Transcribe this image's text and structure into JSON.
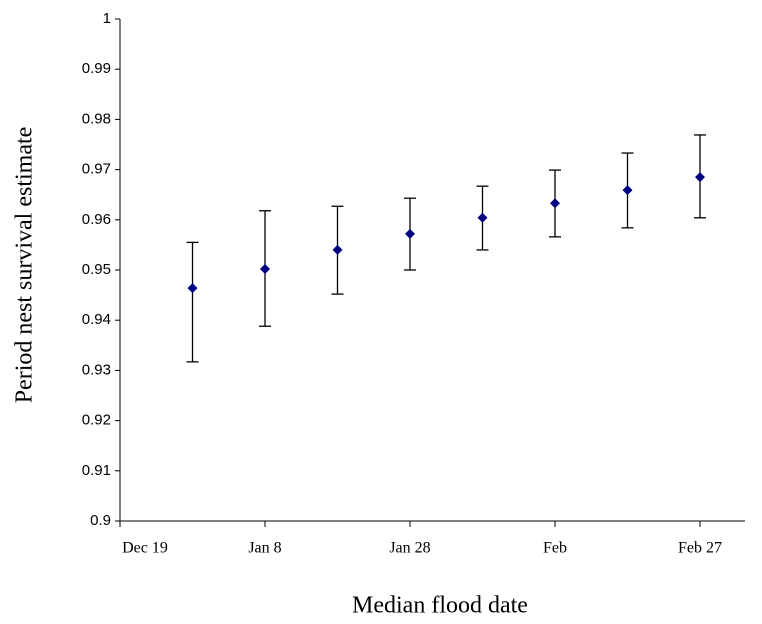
{
  "chart_data": {
    "type": "errorbar",
    "x_label": "Median flood date",
    "y_label": "Period nest survival estimate",
    "categories": [
      "Dec 19",
      null,
      "Jan 8",
      null,
      "Jan 28",
      null,
      "Feb",
      null,
      "Feb 27"
    ],
    "values": [
      null,
      0.9464,
      0.9502,
      0.954,
      0.9572,
      0.9604,
      0.9633,
      0.9659,
      0.9685
    ],
    "lower": [
      null,
      0.9317,
      0.9388,
      0.9452,
      0.95,
      0.954,
      0.9566,
      0.9584,
      0.9604
    ],
    "upper": [
      null,
      0.9555,
      0.9618,
      0.9627,
      0.9643,
      0.9667,
      0.9699,
      0.9733,
      0.9769
    ],
    "color": "#000080",
    "ylim": [
      0.9,
      1
    ],
    "yticks": [
      0.9,
      0.91,
      0.92,
      0.93,
      0.94,
      0.95,
      0.96,
      0.97,
      0.98,
      0.99,
      1
    ]
  }
}
